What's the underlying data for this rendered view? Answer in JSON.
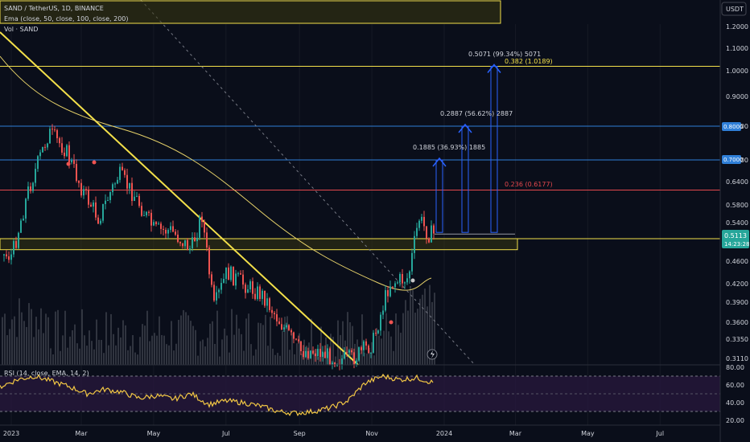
{
  "header": {
    "symbol_line": "SAND / TetherUS, 1D, BINANCE",
    "ema_line": "Ema (close, 50, close, 100, close, 200)",
    "vol_line": "Vol · SAND",
    "currency_button": "USDT"
  },
  "rsi": {
    "legend": "RSI (14, close, EMA, 14, 2)",
    "ticks": [
      "80.00",
      "60.00",
      "40.00",
      "20.00"
    ]
  },
  "price_axis": {
    "ticks": [
      "1.2000",
      "1.1000",
      "1.0000",
      "0.9000",
      "0.8000",
      "0.7000",
      "0.6400",
      "0.5800",
      "0.5400",
      "0.5000",
      "0.4600",
      "0.4200",
      "0.3900",
      "0.3600",
      "0.3350",
      "0.3110"
    ],
    "current_price": "0.5113",
    "countdown": "14:23:28",
    "level_label_1": "0.8000",
    "level_label_2": "0.7000"
  },
  "time_axis": {
    "ticks": [
      "2023",
      "Mar",
      "May",
      "Jul",
      "Sep",
      "Nov",
      "2024",
      "Mar",
      "May",
      "Jul"
    ]
  },
  "annotations": {
    "target_1": "0.1885 (36.93%) 1885",
    "target_2": "0.2887 (56.62%) 2887",
    "target_3": "0.5071 (99.34%) 5071",
    "fib_1": "0.382 (1.0189)",
    "fib_2": "0.236 (0.6177)"
  },
  "colors": {
    "background": "#0a0e1a",
    "up_candle": "#26a69a",
    "down_candle": "#ef5350",
    "yellow": "#f3e04a",
    "blue_level": "#2f7fd8",
    "red_level": "#e5484d",
    "rsi_line": "#f2c744",
    "rsi_band": "#2a1840",
    "arrow": "#2962ff"
  },
  "chart_data": {
    "type": "candlestick",
    "title": "SAND / TetherUS, 1D, BINANCE",
    "xlabel": "",
    "ylabel": "",
    "y_scale": "log",
    "ylim": [
      0.3,
      1.25
    ],
    "x": [
      "2023-01-01",
      "2023-01-15",
      "2023-02-01",
      "2023-02-15",
      "2023-03-01",
      "2023-03-15",
      "2023-04-01",
      "2023-04-15",
      "2023-05-01",
      "2023-05-15",
      "2023-06-01",
      "2023-06-10",
      "2023-06-20",
      "2023-07-01",
      "2023-07-15",
      "2023-08-01",
      "2023-08-15",
      "2023-09-01",
      "2023-09-15",
      "2023-10-01",
      "2023-10-15",
      "2023-11-01",
      "2023-11-15",
      "2023-12-01",
      "2023-12-10",
      "2023-12-18"
    ],
    "close": [
      0.47,
      0.62,
      0.78,
      0.73,
      0.62,
      0.55,
      0.66,
      0.6,
      0.52,
      0.52,
      0.48,
      0.56,
      0.38,
      0.44,
      0.42,
      0.4,
      0.36,
      0.32,
      0.32,
      0.31,
      0.31,
      0.33,
      0.42,
      0.43,
      0.55,
      0.5113
    ],
    "horizontal_levels": [
      {
        "value": 1.0189,
        "label": "0.382 (1.0189)"
      },
      {
        "value": 0.8
      },
      {
        "value": 0.7
      },
      {
        "value": 0.6177,
        "label": "0.236 (0.6177)"
      },
      {
        "value": 0.5
      }
    ],
    "targets": [
      {
        "label": "0.1885 (36.93%) 1885",
        "from": 0.5113,
        "to": 0.7
      },
      {
        "label": "0.2887 (56.62%) 2887",
        "from": 0.5113,
        "to": 0.8
      },
      {
        "label": "0.5071 (99.34%) 5071",
        "from": 0.5113,
        "to": 1.0189
      }
    ],
    "rsi_ylim": [
      20,
      80
    ],
    "rsi_bands": [
      70,
      50,
      30
    ],
    "rsi_values": [
      58,
      66,
      70,
      64,
      58,
      50,
      55,
      52,
      45,
      48,
      44,
      50,
      38,
      42,
      40,
      36,
      30,
      28,
      30,
      34,
      42,
      62,
      70,
      66,
      68,
      62
    ]
  }
}
